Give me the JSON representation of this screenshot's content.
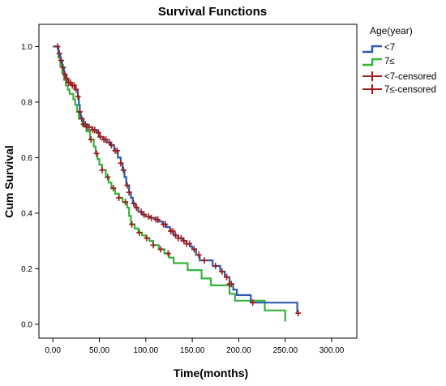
{
  "chart_data": {
    "type": "line",
    "title": "Survival Functions",
    "xlabel": "Time(months)",
    "ylabel": "Cum Survival",
    "xlim": [
      -15,
      327
    ],
    "ylim": [
      -0.05,
      1.08
    ],
    "xticks": [
      "0.00",
      "50.00",
      "100.00",
      "150.00",
      "200.00",
      "250.00",
      "300.00"
    ],
    "xtick_values": [
      0,
      50,
      100,
      150,
      200,
      250,
      300
    ],
    "yticks": [
      "0.0",
      "0.2",
      "0.4",
      "0.6",
      "0.8",
      "1.0"
    ],
    "ytick_values": [
      0.0,
      0.2,
      0.4,
      0.6,
      0.8,
      1.0
    ],
    "grid": false,
    "legend_position": "right",
    "legend_title": "Age(year)",
    "colors": {
      "lt7": "#2E5AA7",
      "ge7": "#35B33A",
      "censor": "#A01C1C"
    },
    "series": [
      {
        "name": "<7",
        "color": "#2E5AA7",
        "steps": [
          [
            0,
            1.0
          ],
          [
            6,
            0.975
          ],
          [
            8,
            0.95
          ],
          [
            10,
            0.925
          ],
          [
            12,
            0.9
          ],
          [
            14,
            0.885
          ],
          [
            16,
            0.87
          ],
          [
            20,
            0.86
          ],
          [
            24,
            0.845
          ],
          [
            27,
            0.82
          ],
          [
            28,
            0.79
          ],
          [
            29,
            0.765
          ],
          [
            30,
            0.74
          ],
          [
            33,
            0.72
          ],
          [
            37,
            0.71
          ],
          [
            42,
            0.7
          ],
          [
            47,
            0.69
          ],
          [
            50,
            0.675
          ],
          [
            54,
            0.665
          ],
          [
            58,
            0.655
          ],
          [
            62,
            0.645
          ],
          [
            66,
            0.625
          ],
          [
            70,
            0.6
          ],
          [
            73,
            0.58
          ],
          [
            75,
            0.555
          ],
          [
            77,
            0.53
          ],
          [
            79,
            0.5
          ],
          [
            82,
            0.475
          ],
          [
            84,
            0.455
          ],
          [
            86,
            0.435
          ],
          [
            89,
            0.42
          ],
          [
            92,
            0.405
          ],
          [
            96,
            0.395
          ],
          [
            100,
            0.388
          ],
          [
            105,
            0.383
          ],
          [
            110,
            0.377
          ],
          [
            114,
            0.37
          ],
          [
            118,
            0.36
          ],
          [
            122,
            0.35
          ],
          [
            126,
            0.335
          ],
          [
            130,
            0.32
          ],
          [
            135,
            0.31
          ],
          [
            140,
            0.3
          ],
          [
            144,
            0.29
          ],
          [
            148,
            0.28
          ],
          [
            150,
            0.27
          ],
          [
            154,
            0.25
          ],
          [
            158,
            0.23
          ],
          [
            172,
            0.21
          ],
          [
            180,
            0.19
          ],
          [
            185,
            0.17
          ],
          [
            190,
            0.145
          ],
          [
            194,
            0.125
          ],
          [
            198,
            0.105
          ],
          [
            213,
            0.078
          ],
          [
            263,
            0.04
          ]
        ],
        "end": 263
      },
      {
        "name": "7≤",
        "color": "#35B33A",
        "steps": [
          [
            0,
            1.0
          ],
          [
            6,
            0.96
          ],
          [
            8,
            0.93
          ],
          [
            10,
            0.905
          ],
          [
            12,
            0.88
          ],
          [
            14,
            0.86
          ],
          [
            16,
            0.845
          ],
          [
            18,
            0.83
          ],
          [
            22,
            0.81
          ],
          [
            24,
            0.79
          ],
          [
            26,
            0.765
          ],
          [
            28,
            0.74
          ],
          [
            32,
            0.715
          ],
          [
            36,
            0.695
          ],
          [
            40,
            0.665
          ],
          [
            44,
            0.64
          ],
          [
            46,
            0.615
          ],
          [
            48,
            0.595
          ],
          [
            50,
            0.575
          ],
          [
            53,
            0.555
          ],
          [
            57,
            0.53
          ],
          [
            60,
            0.51
          ],
          [
            63,
            0.49
          ],
          [
            67,
            0.47
          ],
          [
            71,
            0.455
          ],
          [
            75,
            0.44
          ],
          [
            80,
            0.42
          ],
          [
            82,
            0.39
          ],
          [
            84,
            0.36
          ],
          [
            88,
            0.345
          ],
          [
            92,
            0.33
          ],
          [
            96,
            0.32
          ],
          [
            100,
            0.31
          ],
          [
            104,
            0.3
          ],
          [
            108,
            0.285
          ],
          [
            114,
            0.27
          ],
          [
            120,
            0.255
          ],
          [
            125,
            0.24
          ],
          [
            130,
            0.22
          ],
          [
            145,
            0.195
          ],
          [
            160,
            0.165
          ],
          [
            170,
            0.14
          ],
          [
            190,
            0.11
          ],
          [
            196,
            0.085
          ],
          [
            228,
            0.05
          ],
          [
            250,
            0.01
          ]
        ],
        "end": 250
      }
    ],
    "censored": [
      {
        "name": "<7-censored",
        "color": "#A01C1C"
      },
      {
        "name": "7≤-censored",
        "color": "#A01C1C"
      }
    ],
    "censor_times": [
      5,
      7,
      9,
      11,
      13,
      15,
      17,
      19,
      21,
      23,
      25,
      27,
      29,
      31,
      33,
      35,
      37,
      39,
      41,
      43,
      45,
      47,
      49,
      51,
      53,
      55,
      57,
      59,
      61,
      63,
      65,
      67,
      69,
      71,
      73,
      76,
      78,
      80,
      82,
      85,
      87,
      90,
      93,
      95,
      98,
      101,
      103,
      106,
      108,
      111,
      113,
      116,
      119,
      121,
      124,
      127,
      129,
      132,
      135,
      138,
      141,
      144,
      147,
      152,
      157,
      163,
      175,
      182,
      187,
      190,
      192,
      215,
      264
    ]
  }
}
